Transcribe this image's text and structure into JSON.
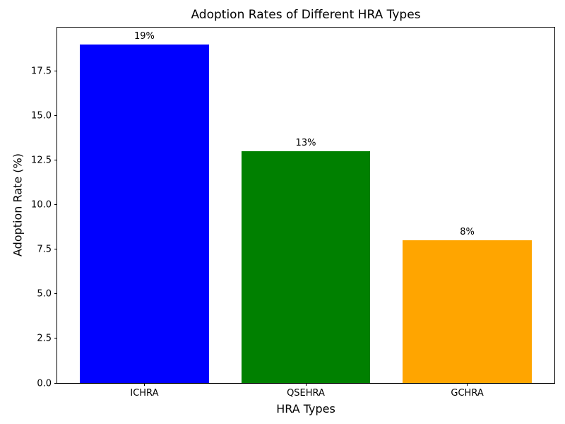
{
  "chart_data": {
    "type": "bar",
    "title": "Adoption Rates of Different HRA Types",
    "xlabel": "HRA Types",
    "ylabel": "Adoption Rate (%)",
    "categories": [
      "ICHRA",
      "QSEHRA",
      "GCHRA"
    ],
    "values": [
      19,
      13,
      8
    ],
    "bar_labels": [
      "19%",
      "13%",
      "8%"
    ],
    "bar_colors": [
      "#0000ff",
      "#008000",
      "#ffa500"
    ],
    "bar_width_data_units": 0.8,
    "ylim": [
      0,
      19.95
    ],
    "yticks": [
      0.0,
      2.5,
      5.0,
      7.5,
      10.0,
      12.5,
      15.0,
      17.5
    ],
    "ytick_labels": [
      "0.0",
      "2.5",
      "5.0",
      "7.5",
      "10.0",
      "12.5",
      "15.0",
      "17.5"
    ],
    "grid": false,
    "legend": "none",
    "background_color": "#ffffff"
  }
}
